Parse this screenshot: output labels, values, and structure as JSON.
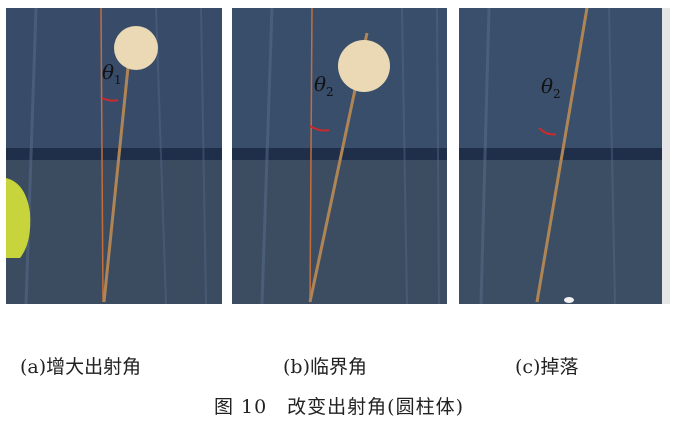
{
  "panels": [
    {
      "id": "a",
      "angle_symbol": "θ",
      "angle_subscript": "1",
      "caption": "(a)增大出射角"
    },
    {
      "id": "b",
      "angle_symbol": "θ",
      "angle_subscript": "2",
      "caption": "(b)临界角"
    },
    {
      "id": "c",
      "angle_symbol": "θ",
      "angle_subscript": "2",
      "caption": "(c)掉落"
    }
  ],
  "figure_title": "图 10　改变出射角(圆柱体)",
  "colors": {
    "rod": "#b08555",
    "guide_line": "#c56d3a",
    "angle_arc": "#cc2a2a",
    "ball": "#ead9b4",
    "backdrop": "#34465f",
    "yellow_object": "#c8d43c"
  }
}
